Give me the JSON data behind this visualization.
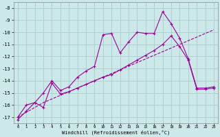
{
  "bg_color": "#cce8e8",
  "grid_color": "#aacccc",
  "line_color": "#990099",
  "xlabel": "Windchill (Refroidissement éolien,°C)",
  "xlim": [
    -0.5,
    23.5
  ],
  "ylim": [
    -17.5,
    -7.5
  ],
  "yticks": [
    -8,
    -9,
    -10,
    -11,
    -12,
    -13,
    -14,
    -15,
    -16,
    -17
  ],
  "xticks": [
    0,
    1,
    2,
    3,
    4,
    5,
    6,
    7,
    8,
    9,
    10,
    11,
    12,
    13,
    14,
    15,
    16,
    17,
    18,
    19,
    20,
    21,
    22,
    23
  ],
  "line1_x": [
    0,
    1,
    2,
    3,
    4,
    5,
    6,
    7,
    8,
    9,
    10,
    11,
    12,
    13,
    14,
    15,
    16,
    17,
    18,
    19,
    20,
    21,
    22,
    23
  ],
  "line1_y": [
    -17.0,
    -16.6,
    -16.2,
    -15.8,
    -15.5,
    -15.2,
    -14.9,
    -14.6,
    -14.3,
    -14.0,
    -13.7,
    -13.4,
    -13.1,
    -12.8,
    -12.5,
    -12.2,
    -11.9,
    -11.6,
    -11.3,
    -11.0,
    -10.7,
    -10.4,
    -10.1,
    -9.8
  ],
  "line2_x": [
    0,
    1,
    2,
    3,
    4,
    5,
    6,
    7,
    8,
    9,
    10,
    11,
    12,
    13,
    14,
    15,
    16,
    17,
    18,
    19,
    20,
    21,
    22,
    23
  ],
  "line2_y": [
    -17.0,
    -16.0,
    -15.8,
    -15.0,
    -14.0,
    -14.8,
    -14.5,
    -13.7,
    -13.2,
    -12.8,
    -10.2,
    -10.1,
    -11.7,
    -10.8,
    -10.0,
    -10.1,
    -10.1,
    -8.3,
    -9.3,
    -10.5,
    -12.2,
    -14.6,
    -14.6,
    -14.5
  ],
  "line3_x": [
    0,
    1,
    2,
    3,
    4,
    5,
    6,
    7,
    8,
    9,
    10,
    11,
    12,
    13,
    14,
    15,
    16,
    17,
    18,
    19,
    20,
    21,
    22,
    23
  ],
  "line3_y": [
    -17.2,
    -16.5,
    -15.8,
    -16.2,
    -14.2,
    -15.1,
    -14.9,
    -14.6,
    -14.3,
    -14.0,
    -13.7,
    -13.5,
    -13.1,
    -12.7,
    -12.3,
    -11.9,
    -11.5,
    -11.0,
    -10.3,
    -11.2,
    -12.3,
    -14.7,
    -14.7,
    -14.6
  ]
}
